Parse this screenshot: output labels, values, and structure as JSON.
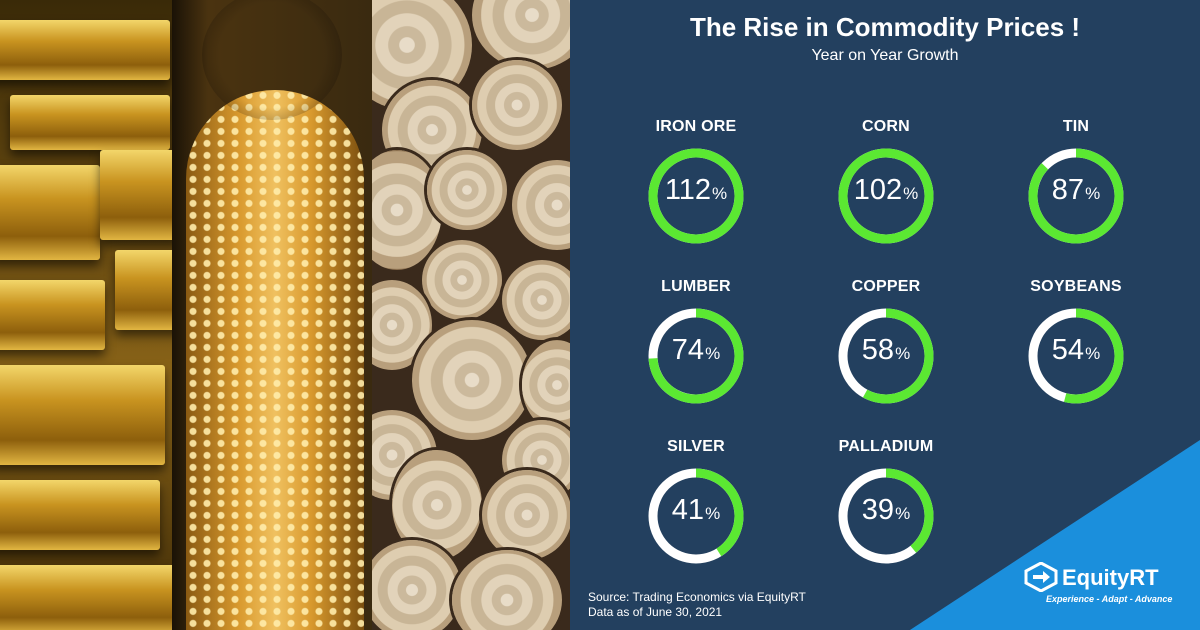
{
  "title": "The Rise in Commodity Prices !",
  "subtitle": "Year on Year Growth",
  "unit": "%",
  "chart_data": {
    "type": "donut",
    "title": "The Rise in Commodity Prices !",
    "subtitle": "Year on Year Growth",
    "max": 100,
    "categories": [
      "IRON ORE",
      "CORN",
      "TIN",
      "LUMBER",
      "COPPER",
      "SOYBEANS",
      "SILVER",
      "PALLADIUM"
    ],
    "values": [
      112,
      102,
      87,
      74,
      58,
      54,
      41,
      39
    ],
    "fill_color": "#5be832",
    "track_color": "#ffffff"
  },
  "source": {
    "line1": "Source: Trading  Economics via EquityRT",
    "line2": "Data as of June 30, 2021"
  },
  "brand": {
    "name": "EquityRT",
    "tagline": "Experience - Adapt - Advance",
    "logo_icon": "equityrt-logo-icon"
  },
  "photos": [
    "gold-bars-image",
    "corn-cob-image",
    "timber-logs-image"
  ]
}
